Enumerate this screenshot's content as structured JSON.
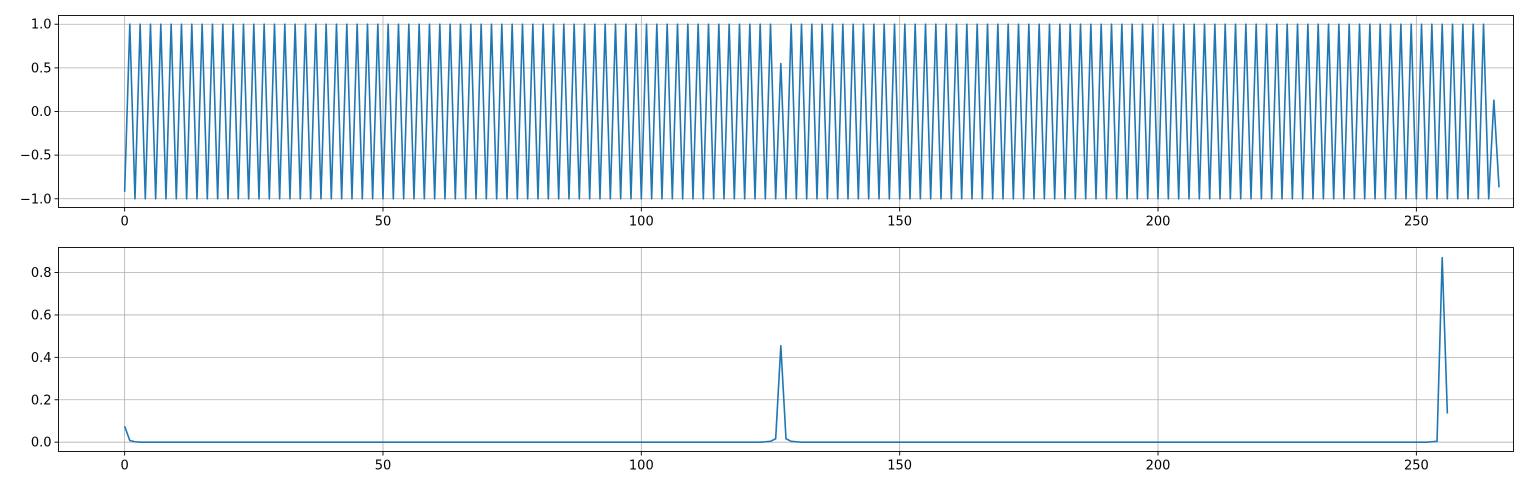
{
  "chart_data": [
    {
      "type": "line",
      "title": "",
      "xlabel": "",
      "ylabel": "",
      "xlim": [
        -12.8,
        268.8
      ],
      "ylim": [
        -1.1,
        1.1
      ],
      "grid": true,
      "color": "#1f77b4",
      "xticks": [
        0,
        50,
        100,
        150,
        200,
        250
      ],
      "xtick_labels": [
        "0",
        "50",
        "100",
        "150",
        "200",
        "250"
      ],
      "yticks": [
        -1.0,
        -0.5,
        0.0,
        0.5,
        1.0
      ],
      "ytick_labels": [
        "−1.0",
        "−0.5",
        "0.0",
        "0.5",
        "1.0"
      ],
      "series": [
        {
          "x_start": 0,
          "x_step": 1,
          "y": [
            -0.92,
            1,
            -1,
            1,
            -1,
            1,
            -1,
            1,
            -1,
            1,
            -1,
            1,
            -1,
            1,
            -1,
            1,
            -1,
            1,
            -1,
            1,
            -1,
            1,
            -1,
            1,
            -1,
            1,
            -1,
            1,
            -1,
            1,
            -1,
            1,
            -1,
            1,
            -1,
            1,
            -1,
            1,
            -1,
            1,
            -1,
            1,
            -1,
            1,
            -1,
            1,
            -1,
            1,
            -1,
            1,
            -1,
            1,
            -1,
            1,
            -1,
            1,
            -1,
            1,
            -1,
            1,
            -1,
            1,
            -1,
            1,
            -1,
            1,
            -1,
            1,
            -1,
            1,
            -1,
            1,
            -1,
            1,
            -1,
            1,
            -1,
            1,
            -1,
            1,
            -1,
            1,
            -1,
            1,
            -1,
            1,
            -1,
            1,
            -1,
            1,
            -1,
            1,
            -1,
            1,
            -1,
            1,
            -1,
            1,
            -1,
            1,
            -1,
            1,
            -1,
            1,
            -1,
            1,
            -1,
            1,
            -1,
            1,
            -1,
            1,
            -1,
            1,
            -1,
            1,
            -1,
            1,
            -1,
            1,
            -1,
            1,
            -1,
            1,
            -1,
            1,
            -1,
            0.55,
            -1,
            1,
            -1,
            1,
            -1,
            1,
            -1,
            1,
            -1,
            1,
            -1,
            1,
            -1,
            1,
            -1,
            1,
            -1,
            1,
            -1,
            1,
            -1,
            1,
            -1,
            1,
            -1,
            1,
            -1,
            1,
            -1,
            1,
            -1,
            1,
            -1,
            1,
            -1,
            1,
            -1,
            1,
            -1,
            1,
            -1,
            1,
            -1,
            1,
            -1,
            1,
            -1,
            1,
            -1,
            1,
            -1,
            1,
            -1,
            1,
            -1,
            1,
            -1,
            1,
            -1,
            1,
            -1,
            1,
            -1,
            1,
            -1,
            1,
            -1,
            1,
            -1,
            1,
            -1,
            1,
            -1,
            1,
            -1,
            1,
            -1,
            1,
            -1,
            1,
            -1,
            1,
            -1,
            1,
            -1,
            1,
            -1,
            1,
            -1,
            1,
            -1,
            1,
            -1,
            1,
            -1,
            1,
            -1,
            1,
            -1,
            1,
            -1,
            1,
            -1,
            1,
            -1,
            1,
            -1,
            1,
            -1,
            1,
            -1,
            1,
            -1,
            1,
            -1,
            1,
            -1,
            1,
            -1,
            1,
            -1,
            1,
            -1,
            1,
            -1,
            1,
            -1,
            1,
            -1,
            1,
            -1,
            1,
            -1,
            1,
            -1,
            1,
            -1,
            0.13,
            -0.87
          ]
        }
      ]
    },
    {
      "type": "line",
      "title": "",
      "xlabel": "",
      "ylabel": "",
      "xlim": [
        -12.8,
        268.8
      ],
      "ylim": [
        -0.044,
        0.918
      ],
      "grid": true,
      "color": "#1f77b4",
      "xticks": [
        0,
        50,
        100,
        150,
        200,
        250
      ],
      "xtick_labels": [
        "0",
        "50",
        "100",
        "150",
        "200",
        "250"
      ],
      "yticks": [
        0.0,
        0.2,
        0.4,
        0.6,
        0.8
      ],
      "ytick_labels": [
        "0.0",
        "0.2",
        "0.4",
        "0.6",
        "0.8"
      ],
      "series": [
        {
          "x_start": 0,
          "x_step": 1,
          "baseline": 0.0,
          "overrides": [
            [
              0,
              0.075
            ],
            [
              1,
              0.008
            ],
            [
              2,
              0.002
            ],
            [
              124,
              0.002
            ],
            [
              125,
              0.004
            ],
            [
              126,
              0.016
            ],
            [
              127,
              0.455
            ],
            [
              128,
              0.016
            ],
            [
              129,
              0.004
            ],
            [
              130,
              0.002
            ],
            [
              253,
              0.002
            ],
            [
              254,
              0.004
            ],
            [
              255,
              0.87
            ],
            [
              256,
              0.135
            ]
          ],
          "n": 257
        }
      ]
    }
  ]
}
